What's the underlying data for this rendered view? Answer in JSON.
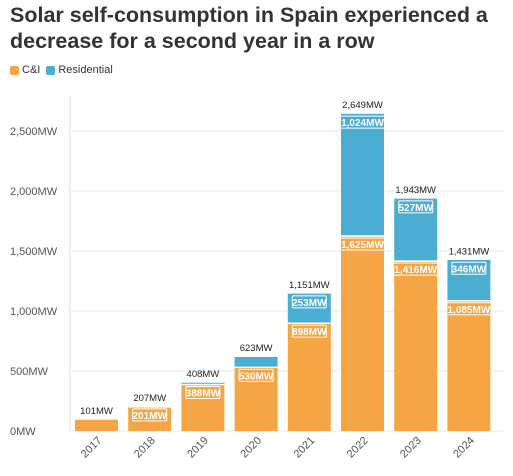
{
  "chart_data": {
    "type": "bar",
    "stacked": true,
    "title": "Solar self-consumption in Spain experienced a decrease for a second year in a row",
    "xlabel": "",
    "ylabel": "",
    "categories": [
      "2017",
      "2018",
      "2019",
      "2020",
      "2021",
      "2022",
      "2023",
      "2024"
    ],
    "series": [
      {
        "name": "C&I",
        "color": "#f5a544",
        "values": [
          101,
          201,
          388,
          530,
          898,
          1625,
          1416,
          1085
        ],
        "labels": [
          "",
          "201MW",
          "388MW",
          "530MW",
          "898MW",
          "1,625MW",
          "1,416MW",
          "1,085MW"
        ]
      },
      {
        "name": "Residential",
        "color": "#4badd2",
        "values": [
          0,
          6,
          20,
          93,
          253,
          1024,
          527,
          346
        ],
        "labels": [
          "",
          "",
          "",
          "",
          "253MW",
          "1,024MW",
          "527MW",
          "346MW"
        ]
      }
    ],
    "totals": [
      101,
      207,
      408,
      623,
      1151,
      2649,
      1943,
      1431
    ],
    "total_labels": [
      "101MW",
      "207MW",
      "408MW",
      "623MW",
      "1,151MW",
      "2,649MW",
      "1,943MW",
      "1,431MW"
    ],
    "ylim": [
      0,
      2800
    ],
    "yticks": [
      0,
      500,
      1000,
      1500,
      2000,
      2500
    ],
    "ytick_labels": [
      "0MW",
      "500MW",
      "1,000MW",
      "1,500MW",
      "2,000MW",
      "2,500MW"
    ],
    "grid": true,
    "legend_position": "top-left"
  }
}
